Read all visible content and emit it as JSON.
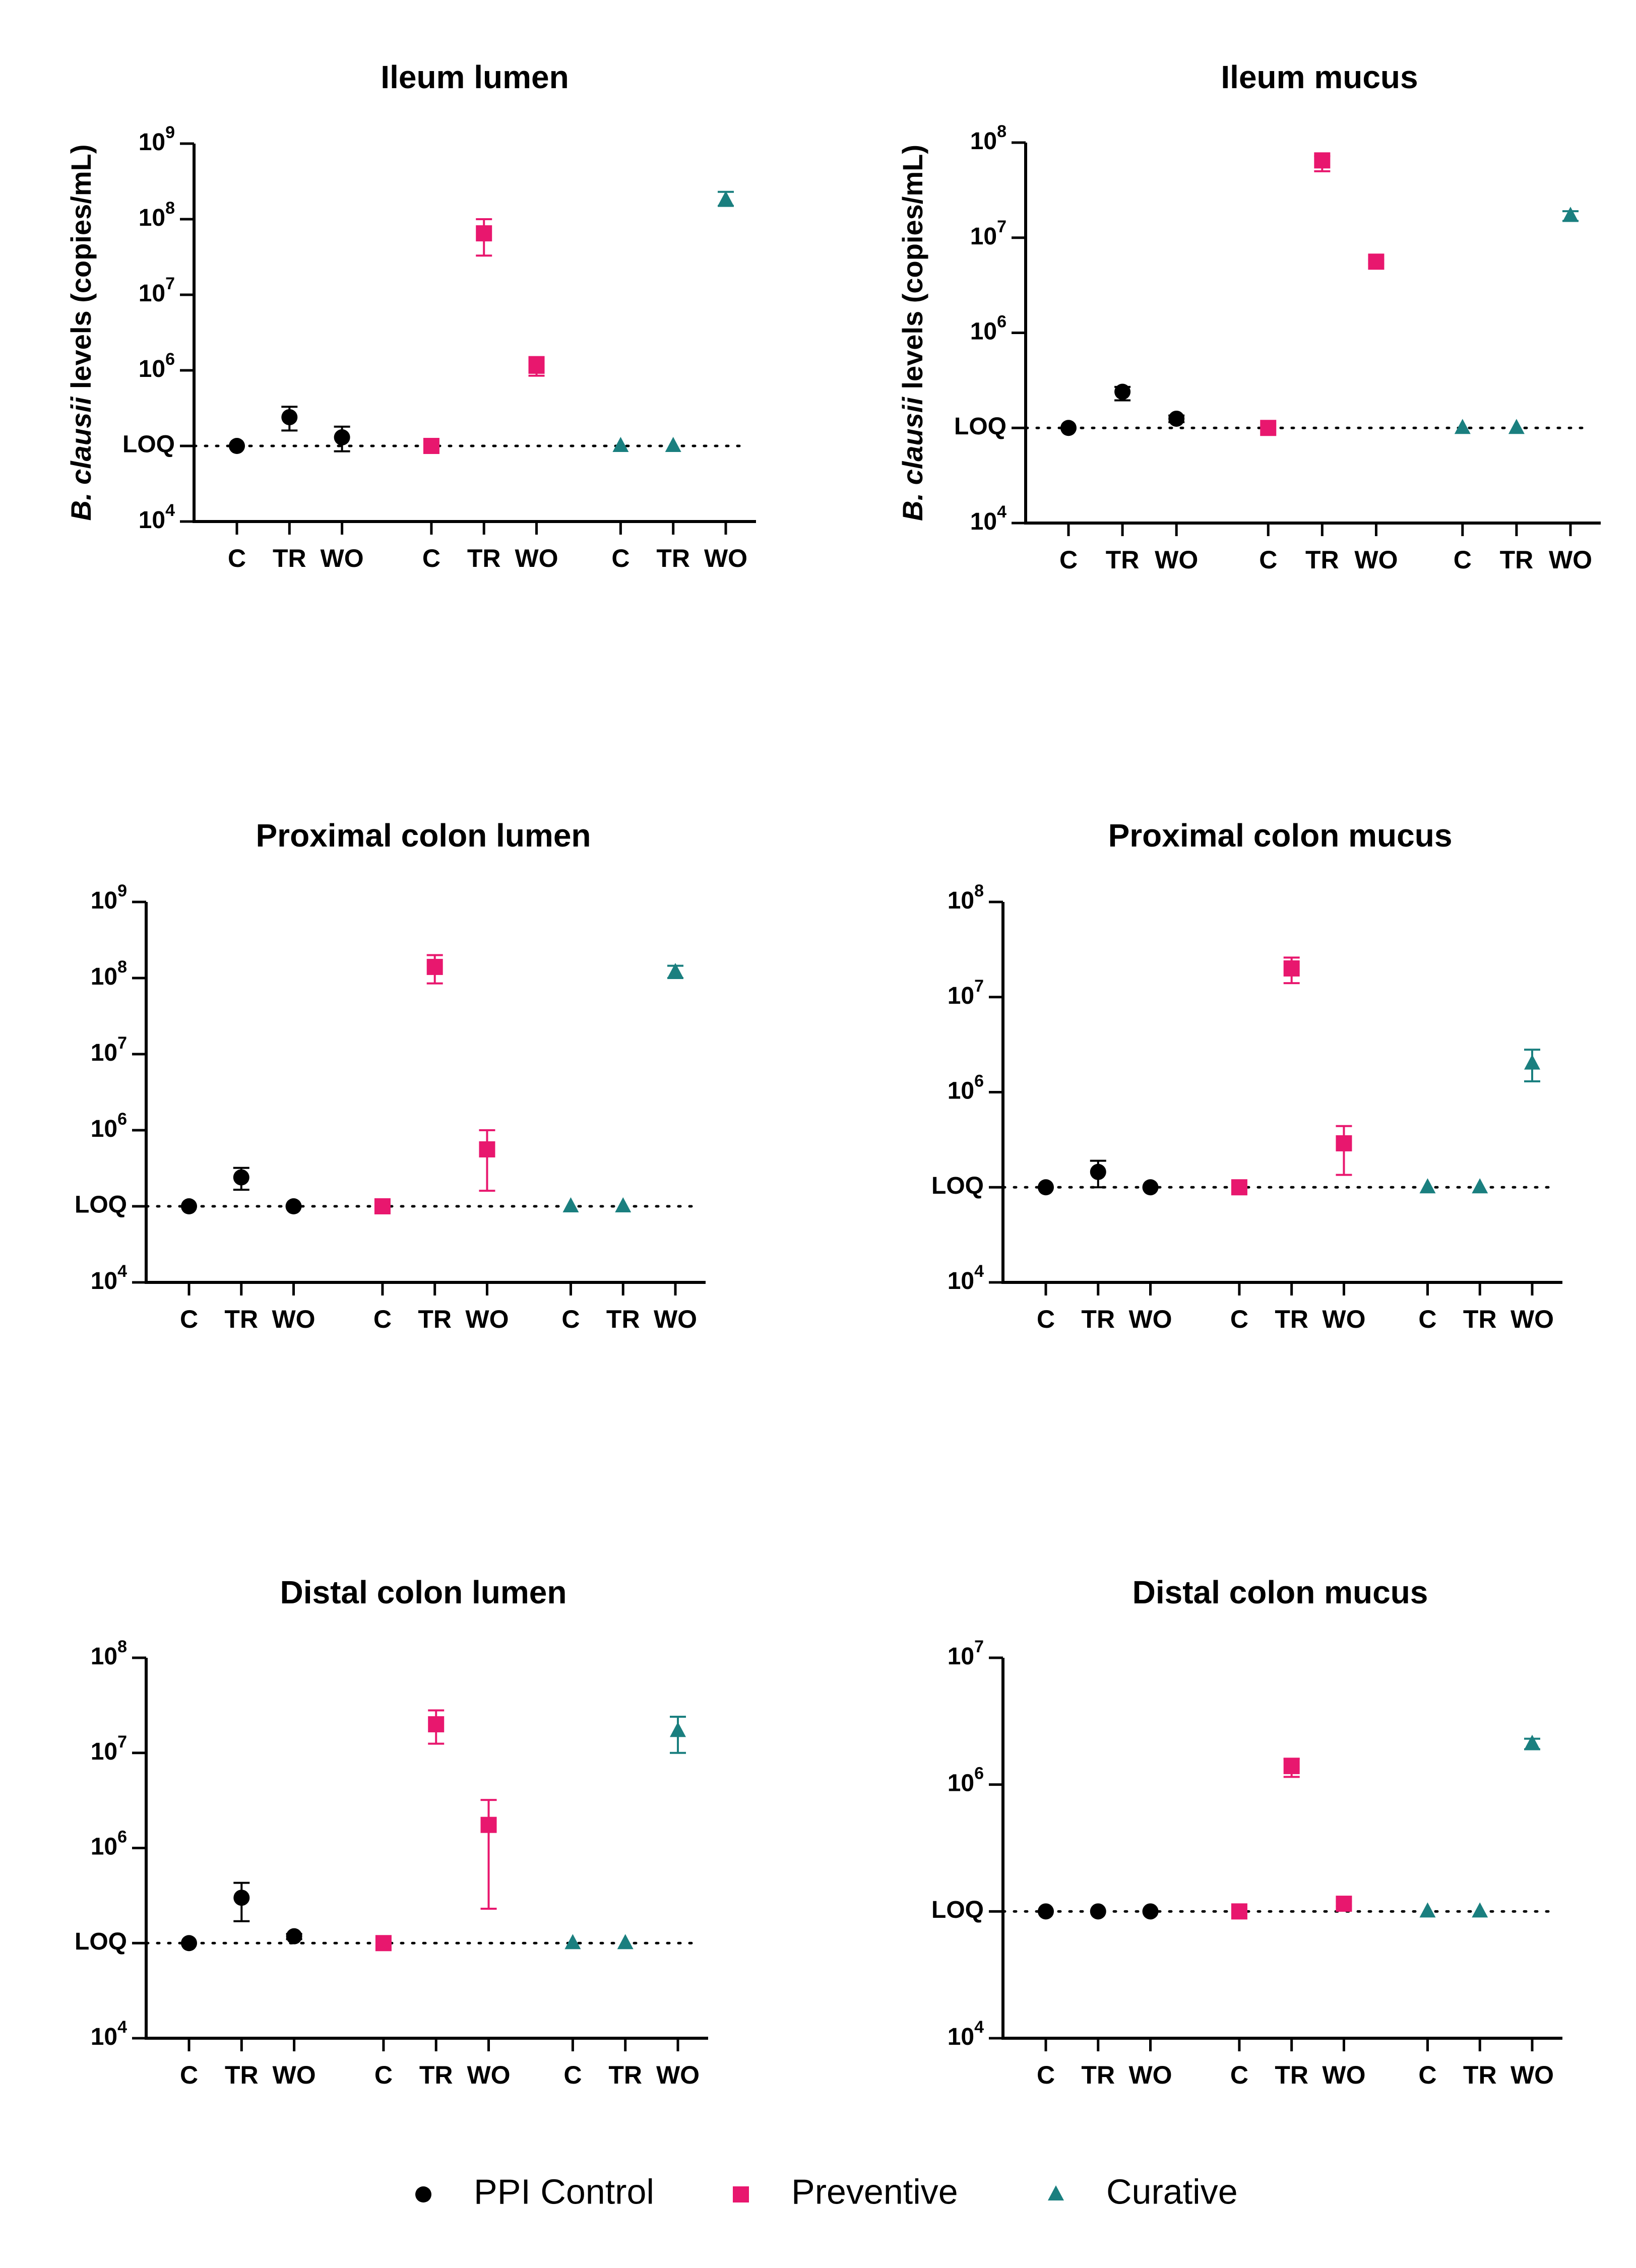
{
  "figure": {
    "groups": [
      {
        "name": "PPI Control",
        "color": "#000000",
        "marker": "circle"
      },
      {
        "name": "Preventive",
        "color": "#e8176e",
        "marker": "square"
      },
      {
        "name": "Curative",
        "color": "#1a7f7f",
        "marker": "triangle"
      }
    ],
    "legend_position": "bottom-center",
    "ylabel_prefix": "B. clausii",
    "ylabel_suffix": " levels (copies/mL)",
    "loq_label": "LOQ"
  },
  "chart_data": [
    {
      "type": "scatter",
      "title": "Ileum lumen",
      "ylabel": "B. clausii levels (copies/mL)",
      "yscale": "log",
      "ylim": [
        10000,
        1000000000
      ],
      "yticks": [
        "10^4",
        "LOQ",
        "10^6",
        "10^7",
        "10^8",
        "10^9"
      ],
      "loq": 100000,
      "categories": [
        "C",
        "TR",
        "WO",
        "C",
        "TR",
        "WO",
        "C",
        "TR",
        "WO"
      ],
      "series": [
        {
          "name": "PPI Control",
          "x": [
            1,
            2,
            3
          ],
          "values": [
            100000,
            240000,
            130000
          ],
          "err_low": [
            100000,
            160000,
            85000
          ],
          "err_high": [
            100000,
            330000,
            180000
          ]
        },
        {
          "name": "Preventive",
          "x": [
            4.7,
            5.7,
            6.7
          ],
          "values": [
            100000,
            65000000,
            1150000
          ],
          "err_low": [
            100000,
            33000000,
            850000
          ],
          "err_high": [
            100000,
            100000000,
            1500000
          ]
        },
        {
          "name": "Curative",
          "x": [
            8.3,
            9.3,
            10.3
          ],
          "values": [
            100000,
            100000,
            180000000
          ],
          "err_low": [
            100000,
            100000,
            150000000
          ],
          "err_high": [
            100000,
            100000,
            230000000
          ]
        }
      ]
    },
    {
      "type": "scatter",
      "title": "Ileum mucus",
      "ylabel": "B. clausii levels (copies/mL)",
      "yscale": "log",
      "ylim": [
        10000,
        100000000
      ],
      "yticks": [
        "10^4",
        "LOQ",
        "10^6",
        "10^7",
        "10^8"
      ],
      "loq": 100000,
      "categories": [
        "C",
        "TR",
        "WO",
        "C",
        "TR",
        "WO",
        "C",
        "TR",
        "WO"
      ],
      "series": [
        {
          "name": "PPI Control",
          "x": [
            1,
            2,
            3
          ],
          "values": [
            100000,
            240000,
            125000
          ],
          "err_low": [
            100000,
            195000,
            115000
          ],
          "err_high": [
            100000,
            270000,
            135000
          ]
        },
        {
          "name": "Preventive",
          "x": [
            4.7,
            5.7,
            6.7
          ],
          "values": [
            100000,
            65000000,
            5600000
          ],
          "err_low": [
            100000,
            50000000,
            5300000
          ],
          "err_high": [
            100000,
            72000000,
            5900000
          ]
        },
        {
          "name": "Curative",
          "x": [
            8.3,
            9.3,
            10.3
          ],
          "values": [
            100000,
            100000,
            17000000
          ],
          "err_low": [
            100000,
            100000,
            15000000
          ],
          "err_high": [
            100000,
            100000,
            19000000
          ]
        }
      ]
    },
    {
      "type": "scatter",
      "title": "Proximal colon lumen",
      "ylabel": "",
      "yscale": "log",
      "ylim": [
        10000,
        1000000000
      ],
      "yticks": [
        "10^4",
        "LOQ",
        "10^6",
        "10^7",
        "10^8",
        "10^9"
      ],
      "loq": 100000,
      "categories": [
        "C",
        "TR",
        "WO",
        "C",
        "TR",
        "WO",
        "C",
        "TR",
        "WO"
      ],
      "series": [
        {
          "name": "PPI Control",
          "x": [
            1,
            2,
            3
          ],
          "values": [
            100000,
            240000,
            100000
          ],
          "err_low": [
            100000,
            165000,
            100000
          ],
          "err_high": [
            100000,
            320000,
            100000
          ]
        },
        {
          "name": "Preventive",
          "x": [
            4.7,
            5.7,
            6.7
          ],
          "values": [
            100000,
            140000000,
            560000
          ],
          "err_low": [
            100000,
            85000000,
            160000
          ],
          "err_high": [
            100000,
            200000000,
            1000000
          ]
        },
        {
          "name": "Curative",
          "x": [
            8.3,
            9.3,
            10.3
          ],
          "values": [
            100000,
            100000,
            120000000
          ],
          "err_low": [
            100000,
            100000,
            100000000
          ],
          "err_high": [
            100000,
            100000,
            145000000
          ]
        }
      ]
    },
    {
      "type": "scatter",
      "title": "Proximal colon mucus",
      "ylabel": "",
      "yscale": "log",
      "ylim": [
        10000,
        100000000
      ],
      "yticks": [
        "10^4",
        "LOQ",
        "10^6",
        "10^7",
        "10^8"
      ],
      "loq": 100000,
      "categories": [
        "C",
        "TR",
        "WO",
        "C",
        "TR",
        "WO",
        "C",
        "TR",
        "WO"
      ],
      "series": [
        {
          "name": "PPI Control",
          "x": [
            1,
            2,
            3
          ],
          "values": [
            100000,
            145000,
            100000
          ],
          "err_low": [
            100000,
            100000,
            100000
          ],
          "err_high": [
            100000,
            190000,
            100000
          ]
        },
        {
          "name": "Preventive",
          "x": [
            4.7,
            5.7,
            6.7
          ],
          "values": [
            100000,
            20000000,
            290000
          ],
          "err_low": [
            100000,
            14000000,
            135000
          ],
          "err_high": [
            100000,
            26000000,
            440000
          ]
        },
        {
          "name": "Curative",
          "x": [
            8.3,
            9.3,
            10.3
          ],
          "values": [
            100000,
            100000,
            2000000
          ],
          "err_low": [
            100000,
            100000,
            1300000
          ],
          "err_high": [
            100000,
            100000,
            2800000
          ]
        }
      ]
    },
    {
      "type": "scatter",
      "title": "Distal colon lumen",
      "ylabel": "",
      "yscale": "log",
      "ylim": [
        10000,
        100000000
      ],
      "yticks": [
        "10^4",
        "LOQ",
        "10^6",
        "10^7",
        "10^8"
      ],
      "loq": 100000,
      "categories": [
        "C",
        "TR",
        "WO",
        "C",
        "TR",
        "WO",
        "C",
        "TR",
        "WO"
      ],
      "series": [
        {
          "name": "PPI Control",
          "x": [
            1,
            2,
            3
          ],
          "values": [
            100000,
            300000,
            118000
          ],
          "err_low": [
            100000,
            170000,
            110000
          ],
          "err_high": [
            100000,
            430000,
            125000
          ]
        },
        {
          "name": "Preventive",
          "x": [
            4.7,
            5.7,
            6.7
          ],
          "values": [
            100000,
            20000000,
            1750000
          ],
          "err_low": [
            100000,
            12500000,
            230000
          ],
          "err_high": [
            100000,
            28000000,
            3200000
          ]
        },
        {
          "name": "Curative",
          "x": [
            8.3,
            9.3,
            10.3
          ],
          "values": [
            100000,
            100000,
            17000000
          ],
          "err_low": [
            100000,
            100000,
            10000000
          ],
          "err_high": [
            100000,
            100000,
            24000000
          ]
        }
      ]
    },
    {
      "type": "scatter",
      "title": "Distal colon mucus",
      "ylabel": "",
      "yscale": "log",
      "ylim": [
        10000,
        10000000
      ],
      "yticks": [
        "10^4",
        "LOQ",
        "10^6",
        "10^7"
      ],
      "loq": 100000,
      "categories": [
        "C",
        "TR",
        "WO",
        "C",
        "TR",
        "WO",
        "C",
        "TR",
        "WO"
      ],
      "series": [
        {
          "name": "PPI Control",
          "x": [
            1,
            2,
            3
          ],
          "values": [
            100000,
            100000,
            100000
          ],
          "err_low": [
            100000,
            100000,
            100000
          ],
          "err_high": [
            100000,
            100000,
            100000
          ]
        },
        {
          "name": "Preventive",
          "x": [
            4.7,
            5.7,
            6.7
          ],
          "values": [
            100000,
            1400000,
            115000
          ],
          "err_low": [
            100000,
            1150000,
            110000
          ],
          "err_high": [
            100000,
            1600000,
            120000
          ]
        },
        {
          "name": "Curative",
          "x": [
            8.3,
            9.3,
            10.3
          ],
          "values": [
            100000,
            100000,
            2100000
          ],
          "err_low": [
            100000,
            100000,
            1900000
          ],
          "err_high": [
            100000,
            100000,
            2300000
          ]
        }
      ]
    }
  ]
}
